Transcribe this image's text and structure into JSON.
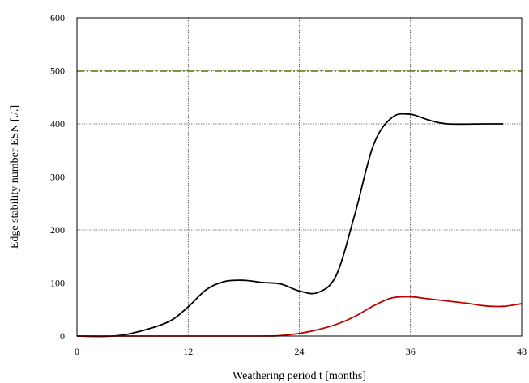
{
  "chart_data": {
    "type": "line",
    "xlabel": "Weathering period t [months]",
    "ylabel": "Edge stability number ESN [./.]",
    "xlim": [
      0,
      48
    ],
    "ylim": [
      0,
      600
    ],
    "x_ticks": [
      0,
      12,
      24,
      36,
      48
    ],
    "y_ticks": [
      0,
      100,
      200,
      300,
      400,
      500,
      600
    ],
    "grid": true,
    "series": [
      {
        "color": "#000000",
        "style": "solid",
        "x": [
          0,
          4,
          7,
          10,
          12,
          14,
          16,
          18,
          20,
          22,
          24,
          26,
          28,
          30,
          32,
          34,
          36,
          38,
          40,
          44,
          46
        ],
        "y": [
          0,
          0,
          10,
          28,
          55,
          88,
          103,
          105,
          101,
          98,
          85,
          82,
          115,
          230,
          360,
          412,
          418,
          407,
          400,
          400,
          400
        ]
      },
      {
        "color": "#c00000",
        "style": "solid",
        "x": [
          0,
          10,
          20,
          22,
          24,
          26,
          28,
          30,
          32,
          34,
          36,
          38,
          40,
          42,
          44,
          46,
          48
        ],
        "y": [
          0,
          0,
          0,
          1,
          5,
          12,
          22,
          37,
          57,
          72,
          74,
          70,
          66,
          62,
          57,
          56,
          61
        ]
      },
      {
        "color": "#7a9a3a",
        "style": "dash-dot",
        "x": [
          0,
          48
        ],
        "y": [
          500,
          500
        ]
      }
    ]
  }
}
